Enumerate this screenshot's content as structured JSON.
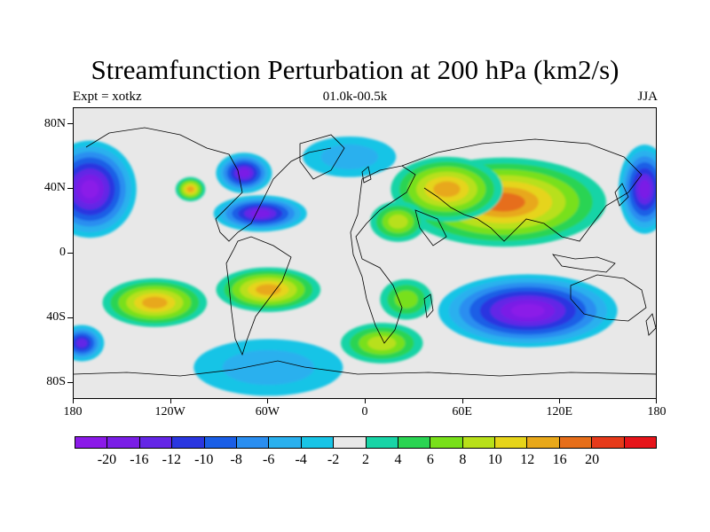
{
  "title": "Streamfunction Perturbation at 200 hPa (km2/s)",
  "subtitle_left": "Expt = xotkz",
  "subtitle_center": "01.0k-00.5k",
  "subtitle_right": "JJA",
  "lat_labels": [
    "80N",
    "40N",
    "0",
    "40S",
    "80S"
  ],
  "lon_labels": [
    "180",
    "120W",
    "60W",
    "0",
    "60E",
    "120E",
    "180"
  ],
  "colorbar": {
    "colors": [
      "#8b1ae8",
      "#7a1ee6",
      "#6426e6",
      "#2a36e0",
      "#1a5ee6",
      "#2a8ef0",
      "#2ab0ee",
      "#18c4e6",
      "#e8e8e8",
      "#18d4a6",
      "#2ad452",
      "#78e01a",
      "#b8e01a",
      "#e6d41a",
      "#e8a81a",
      "#e66e1a",
      "#e63a1a",
      "#e6141a"
    ],
    "labels": [
      "-20",
      "-16",
      "-12",
      "-10",
      "-8",
      "-6",
      "-4",
      "-2",
      "2",
      "4",
      "6",
      "8",
      "10",
      "12",
      "16",
      "20"
    ]
  },
  "map_data": {
    "lon_range": [
      -180,
      180
    ],
    "lat_range": [
      -90,
      90
    ],
    "blobs": [
      {
        "lon": 85,
        "lat": 32,
        "rx": 55,
        "ry": 22,
        "level": 16
      },
      {
        "lon": 50,
        "lat": 40,
        "rx": 30,
        "ry": 16,
        "level": 12
      },
      {
        "lon": -130,
        "lat": -30,
        "rx": 28,
        "ry": 12,
        "level": 12
      },
      {
        "lon": -60,
        "lat": -22,
        "rx": 28,
        "ry": 11,
        "level": 12
      },
      {
        "lon": -108,
        "lat": 40,
        "rx": 8,
        "ry": 6,
        "level": 12
      },
      {
        "lon": 20,
        "lat": 20,
        "rx": 15,
        "ry": 10,
        "level": 8
      },
      {
        "lon": 10,
        "lat": -55,
        "rx": 22,
        "ry": 10,
        "level": 8
      },
      {
        "lon": 25,
        "lat": -28,
        "rx": 14,
        "ry": 10,
        "level": 6
      },
      {
        "lon": 100,
        "lat": -35,
        "rx": 48,
        "ry": 18,
        "level": -20
      },
      {
        "lon": -170,
        "lat": 40,
        "rx": 25,
        "ry": 24,
        "level": -20
      },
      {
        "lon": 172,
        "lat": 40,
        "rx": 14,
        "ry": 22,
        "level": -16
      },
      {
        "lon": -75,
        "lat": 50,
        "rx": 15,
        "ry": 10,
        "level": -16
      },
      {
        "lon": -65,
        "lat": 25,
        "rx": 25,
        "ry": 9,
        "level": -16
      },
      {
        "lon": -175,
        "lat": -55,
        "rx": 12,
        "ry": 9,
        "level": -12
      },
      {
        "lon": -60,
        "lat": -70,
        "rx": 40,
        "ry": 14,
        "level": -4
      },
      {
        "lon": -10,
        "lat": 60,
        "rx": 25,
        "ry": 10,
        "level": -4
      }
    ]
  }
}
